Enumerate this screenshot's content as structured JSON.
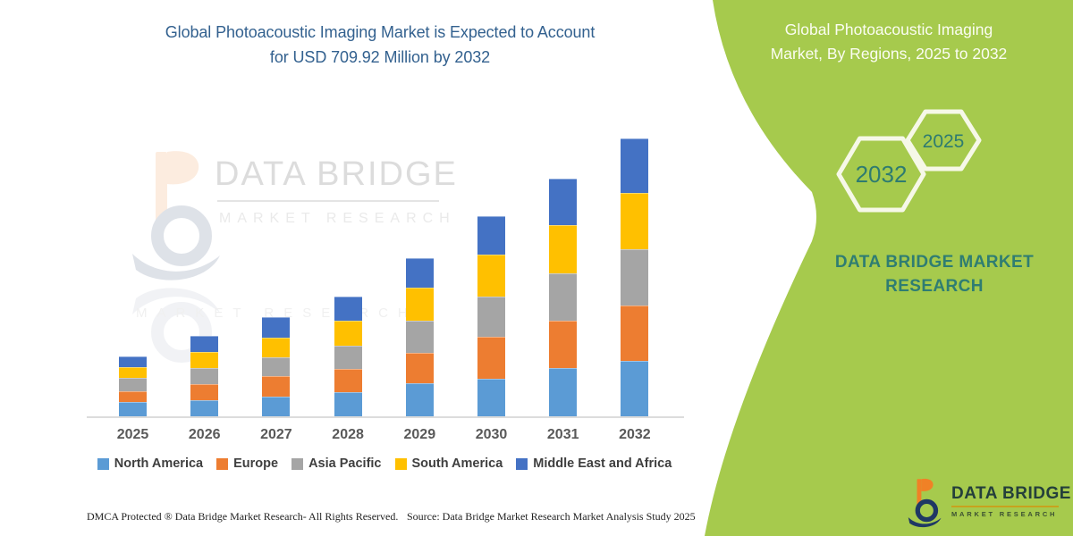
{
  "header": {
    "title_line1": "Global Photoacoustic Imaging Market is Expected to Account",
    "title_line2": "for USD 709.92 Million by 2032"
  },
  "watermark": {
    "brand": "DATA BRIDGE",
    "brand_sub": "MARKET RESEARCH"
  },
  "chart_data": {
    "type": "bar",
    "stacked": true,
    "title": "Global Photoacoustic Imaging Market is Expected to Account for USD 709.92 Million by 2032",
    "unit": "USD Million",
    "categories": [
      "2025",
      "2026",
      "2027",
      "2028",
      "2029",
      "2030",
      "2031",
      "2032"
    ],
    "series": [
      {
        "name": "North America",
        "color": "#5B9BD5",
        "values": [
          38.6,
          43.2,
          52.2,
          64.7,
          87.5,
          98.8,
          124.9,
          144.2
        ]
      },
      {
        "name": "Europe",
        "color": "#ED7D31",
        "values": [
          28.4,
          42.0,
          53.4,
          57.9,
          77.2,
          106.8,
          121.5,
          139.7
        ]
      },
      {
        "name": "Asia Pacific",
        "color": "#A5A5A5",
        "values": [
          32.9,
          39.8,
          46.6,
          59.1,
          81.8,
          102.2,
          119.3,
          144.3
        ]
      },
      {
        "name": "South America",
        "color": "#FFC000",
        "values": [
          28.4,
          40.9,
          51.1,
          64.7,
          82.9,
          105.6,
          122.7,
          143.1
        ]
      },
      {
        "name": "Middle East and Africa",
        "color": "#4472C4",
        "values": [
          26.1,
          40.9,
          51.1,
          60.2,
          76.1,
          97.7,
          119.3,
          138.6
        ]
      }
    ],
    "annotations": {
      "total_2032": "USD 709.92 Million"
    },
    "legend_position": "bottom",
    "gridlines": false,
    "y_axis_visible": false
  },
  "footer": {
    "dmca": "DMCA Protected ® Data Bridge Market Research-  All Rights Reserved.",
    "source": "Source: Data Bridge Market Research  Market Analysis Study 2025"
  },
  "panel": {
    "bg_color": "#A6CA4D",
    "heading_line1": "Global Photoacoustic Imaging",
    "heading_line2": "Market, By Regions, 2025 to 2032",
    "hexagon_large_label": "2032",
    "hexagon_small_label": "2025",
    "brand_line1": "DATA BRIDGE MARKET",
    "brand_line2": "RESEARCH"
  },
  "logo": {
    "name": "DATA BRIDGE",
    "sub": "MARKET RESEARCH"
  },
  "theme": {
    "title_blue": "#33618F",
    "teal": "#2E7B70",
    "green": "#A6CA4D",
    "navy": "#1F3864",
    "orange": "#F08126",
    "axis_gray": "#DCDCDC"
  }
}
